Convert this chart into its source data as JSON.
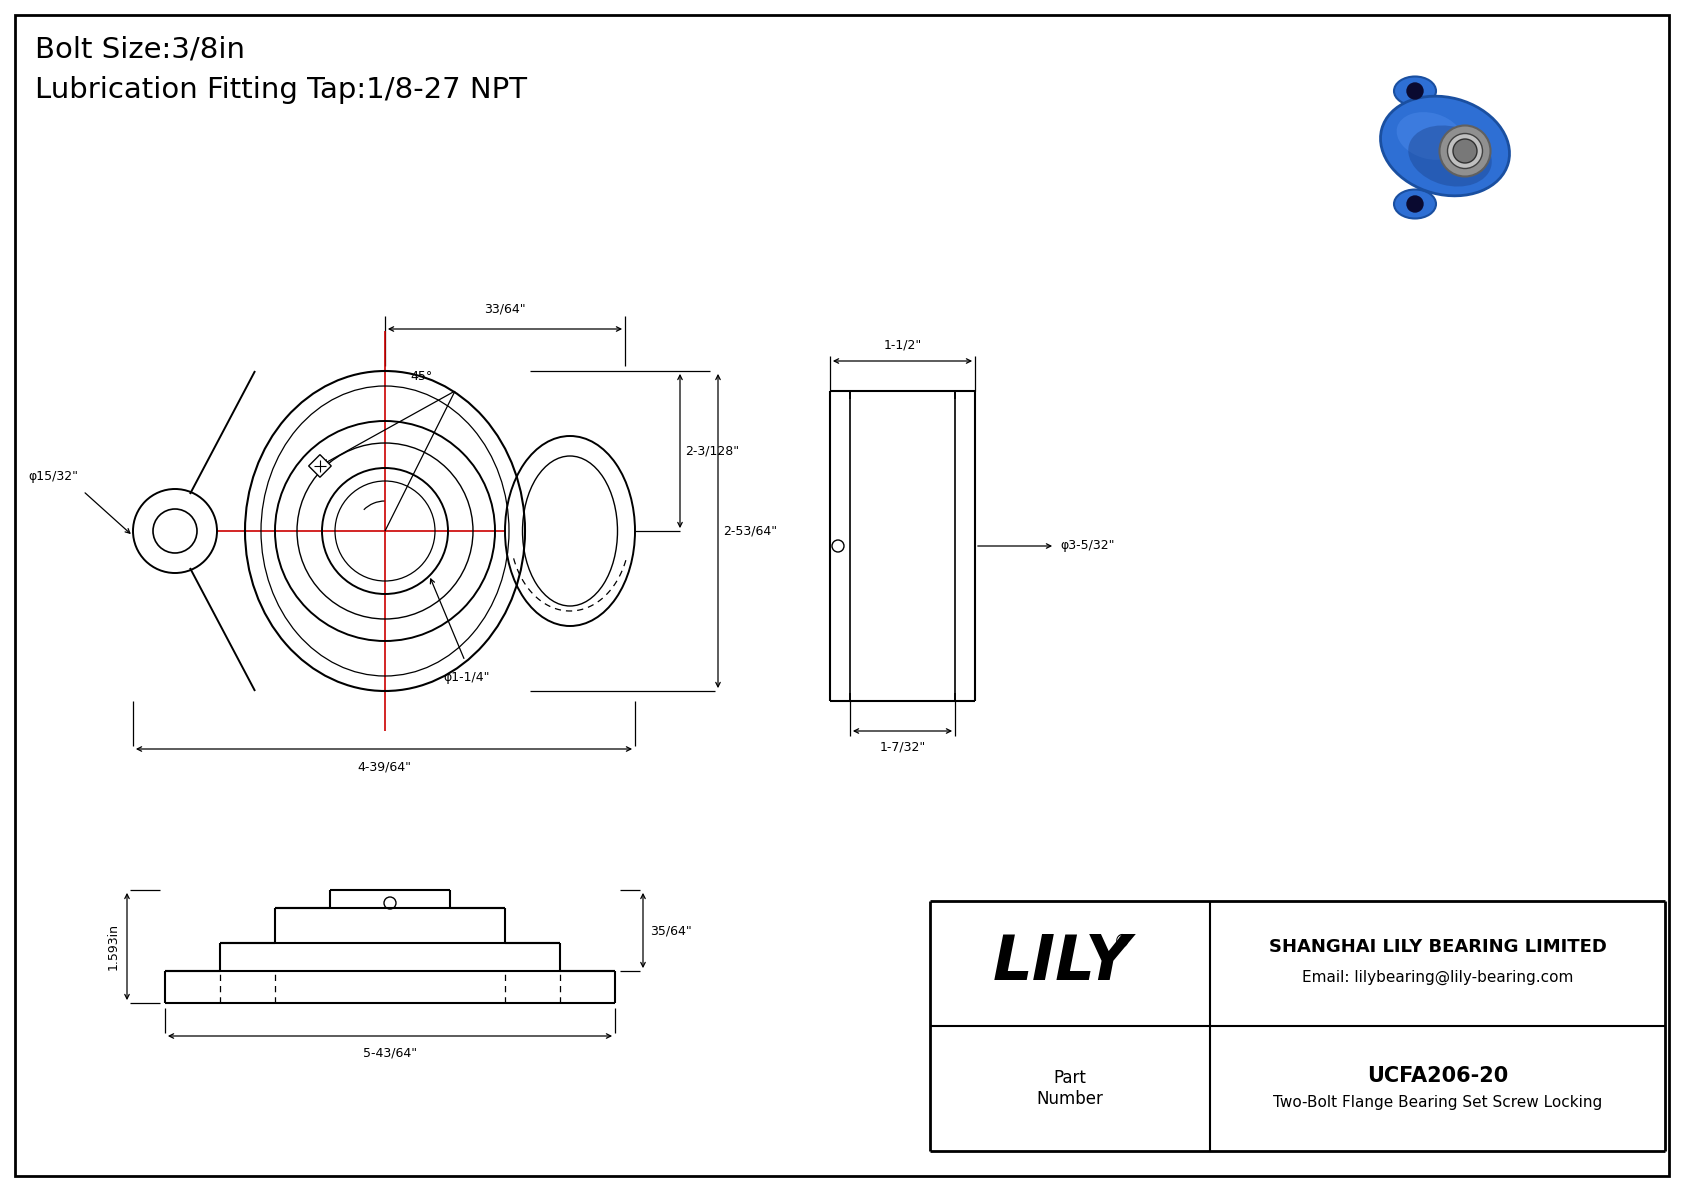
{
  "background_color": "#ffffff",
  "line_color": "#000000",
  "red_line_color": "#cc0000",
  "title_line1": "Bolt Size:3/8in",
  "title_line2": "Lubrication Fitting Tap:1/8-27 NPT",
  "company_name": "SHANGHAI LILY BEARING LIMITED",
  "company_email": "Email: lilybearing@lily-bearing.com",
  "lily_text": "LILY",
  "part_label": "Part\nNumber",
  "part_number": "UCFA206-20",
  "part_desc": "Two-Bolt Flange Bearing Set Screw Locking",
  "dim_45": "45°",
  "dim_33_64": "33/64\"",
  "dim_15_32": "φ15/32\"",
  "dim_2_3_128": "2-3/128\"",
  "dim_2_53_64": "2-53/64\"",
  "dim_1_1_4": "φ1-1/4\"",
  "dim_4_39_64": "4-39/64\"",
  "dim_1_1_2": "1-1/2\"",
  "dim_3_5_32": "φ3-5/32\"",
  "dim_1_7_32": "1-7/32\"",
  "dim_1_593": "1.593in",
  "dim_35_64": "35/64\"",
  "dim_5_43_64": "5-43/64\""
}
